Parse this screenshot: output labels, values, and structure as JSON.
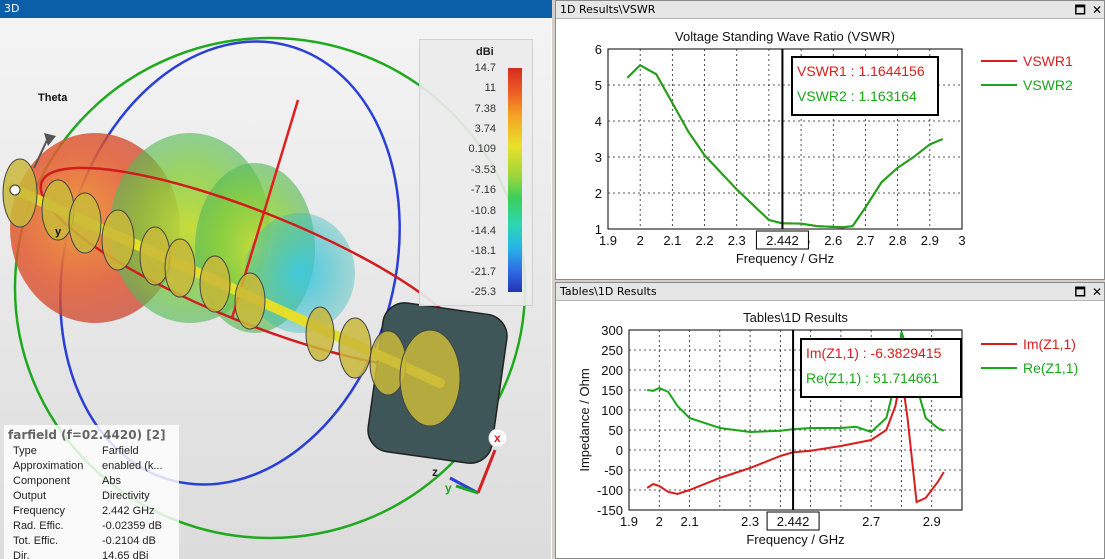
{
  "panel3d": {
    "title": "3D",
    "theta_label": "Theta",
    "y_axis_label": "y",
    "axes": {
      "x": "x",
      "y": "y",
      "z": "z"
    },
    "colorbar": {
      "unit": "dBi",
      "ticks": [
        "14.7",
        "11",
        "7.38",
        "3.74",
        "0.109",
        "-3.53",
        "-7.16",
        "-10.8",
        "-14.4",
        "-18.1",
        "-21.7",
        "-25.3"
      ]
    },
    "info": {
      "header": "farfield (f=02.4420) [2]",
      "rows": [
        {
          "k": "Type",
          "v": "Farfield"
        },
        {
          "k": "Approximation",
          "v": "enabled (k..."
        },
        {
          "k": "Component",
          "v": "Abs"
        },
        {
          "k": "Output",
          "v": "Directivity"
        },
        {
          "k": "Frequency",
          "v": "2.442 GHz"
        },
        {
          "k": "Rad. Effic.",
          "v": "-0.02359 dB"
        },
        {
          "k": "Tot. Effic.",
          "v": "-0.2104 dB"
        },
        {
          "k": "Dir.",
          "v": "14.65 dBi"
        }
      ]
    }
  },
  "panel_vswr": {
    "window_title": "1D Results\\VSWR",
    "btn_restore": "🗖",
    "btn_close": "✕"
  },
  "panel_z": {
    "window_title": "Tables\\1D Results",
    "btn_restore": "🗖",
    "btn_close": "✕"
  },
  "colors": {
    "red": "#d91e1e",
    "green": "#1aa61a",
    "titlebar_active": "#0b5ea8"
  },
  "chart_data": [
    {
      "type": "line",
      "title": "Voltage Standing Wave Ratio (VSWR)",
      "xlabel": "Frequency / GHz",
      "ylabel": "",
      "xlim": [
        1.9,
        3
      ],
      "ylim": [
        1,
        6
      ],
      "xticks": [
        "1.9",
        "2",
        "2.1",
        "2.2",
        "2.3",
        "",
        "2.5",
        "2.6",
        "2.7",
        "2.8",
        "2.9",
        "3"
      ],
      "yticks": [
        "1",
        "2",
        "3",
        "4",
        "5",
        "6"
      ],
      "marker_x": 2.442,
      "marker_label": "2.442",
      "readouts": [
        {
          "text": "VSWR1 : 1.1644156",
          "color": "#d91e1e"
        },
        {
          "text": "VSWR2 : 1.163164",
          "color": "#1aa61a"
        }
      ],
      "series": [
        {
          "name": "VSWR1",
          "color": "#d91e1e",
          "x": [
            1.96,
            2.0,
            2.05,
            2.1,
            2.15,
            2.2,
            2.3,
            2.4,
            2.44,
            2.5,
            2.55,
            2.6,
            2.63,
            2.66,
            2.7,
            2.75,
            2.8,
            2.85,
            2.9,
            2.94
          ],
          "y": [
            5.2,
            5.55,
            5.3,
            4.5,
            3.7,
            3.05,
            2.1,
            1.25,
            1.16,
            1.15,
            1.08,
            1.06,
            1.05,
            1.08,
            1.6,
            2.3,
            2.7,
            3.0,
            3.35,
            3.5
          ]
        },
        {
          "name": "VSWR2",
          "color": "#1aa61a",
          "x": [
            1.96,
            2.0,
            2.05,
            2.1,
            2.15,
            2.2,
            2.3,
            2.4,
            2.44,
            2.5,
            2.55,
            2.6,
            2.63,
            2.66,
            2.7,
            2.75,
            2.8,
            2.85,
            2.9,
            2.94
          ],
          "y": [
            5.2,
            5.55,
            5.3,
            4.5,
            3.7,
            3.05,
            2.1,
            1.25,
            1.16,
            1.15,
            1.08,
            1.06,
            1.05,
            1.08,
            1.6,
            2.3,
            2.7,
            3.0,
            3.35,
            3.5
          ]
        }
      ],
      "grid": true,
      "legend": "right"
    },
    {
      "type": "line",
      "title": "Tables\\1D Results",
      "xlabel": "Frequency / GHz",
      "ylabel": "Impedance / Ohm",
      "xlim": [
        1.9,
        3
      ],
      "ylim": [
        -150,
        300
      ],
      "xticks": [
        "1.9",
        "2",
        "2.1",
        "",
        "2.3",
        "",
        "2.5",
        "",
        "2.7",
        "",
        "2.9",
        ""
      ],
      "yticks": [
        "-150",
        "-100",
        "-50",
        "0",
        "50",
        "100",
        "150",
        "200",
        "250",
        "300"
      ],
      "marker_x": 2.442,
      "marker_label": "2.442",
      "readouts": [
        {
          "text": "Im(Z1,1) : -6.3829415",
          "color": "#d91e1e"
        },
        {
          "text": "Re(Z1,1) : 51.714661",
          "color": "#1aa61a"
        }
      ],
      "series": [
        {
          "name": "Im(Z1,1)",
          "color": "#d91e1e",
          "x": [
            1.96,
            1.98,
            2.0,
            2.03,
            2.06,
            2.1,
            2.2,
            2.3,
            2.4,
            2.44,
            2.5,
            2.6,
            2.7,
            2.75,
            2.78,
            2.8,
            2.82,
            2.85,
            2.88,
            2.92,
            2.94
          ],
          "y": [
            -95,
            -85,
            -90,
            -105,
            -110,
            -100,
            -70,
            -45,
            -15,
            -6,
            -2,
            10,
            25,
            50,
            110,
            190,
            80,
            -130,
            -120,
            -80,
            -55
          ]
        },
        {
          "name": "Re(Z1,1)",
          "color": "#1aa61a",
          "x": [
            1.96,
            1.98,
            2.0,
            2.03,
            2.06,
            2.1,
            2.2,
            2.3,
            2.4,
            2.44,
            2.5,
            2.6,
            2.65,
            2.7,
            2.75,
            2.78,
            2.8,
            2.82,
            2.85,
            2.88,
            2.92,
            2.94
          ],
          "y": [
            150,
            148,
            155,
            145,
            110,
            80,
            55,
            45,
            48,
            52,
            55,
            55,
            58,
            45,
            80,
            170,
            295,
            250,
            160,
            80,
            55,
            48
          ]
        }
      ],
      "grid": true,
      "legend": "right"
    }
  ]
}
